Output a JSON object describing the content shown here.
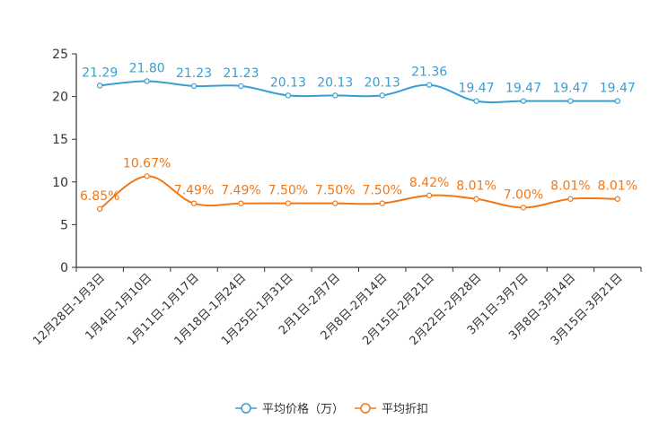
{
  "chart_data": {
    "type": "line",
    "title": "",
    "xlabel": "",
    "ylabel": "",
    "ylim": [
      0,
      25
    ],
    "yticks": [
      0,
      5,
      10,
      15,
      20,
      25
    ],
    "categories": [
      "12月28日-1月3日",
      "1月4日-1月10日",
      "1月11日-1月17日",
      "1月18日-1月24日",
      "1月25日-1月31日",
      "2月1日-2月7日",
      "2月8日-2月14日",
      "2月15日-2月21日",
      "2月22日-2月28日",
      "3月1日-3月7日",
      "3月8日-3月14日",
      "3月15日-3月21日"
    ],
    "series": [
      {
        "name": "平均价格（万）",
        "color": "#3a9fd0",
        "values": [
          21.29,
          21.8,
          21.23,
          21.23,
          20.13,
          20.13,
          20.13,
          21.36,
          19.47,
          19.47,
          19.47,
          19.47
        ],
        "labels": [
          "21.29",
          "21.80",
          "21.23",
          "21.23",
          "20.13",
          "20.13",
          "20.13",
          "21.36",
          "19.47",
          "19.47",
          "19.47",
          "19.47"
        ]
      },
      {
        "name": "平均折扣",
        "color": "#f07818",
        "values": [
          6.85,
          10.67,
          7.49,
          7.49,
          7.5,
          7.5,
          7.5,
          8.42,
          8.01,
          7.0,
          8.01,
          8.01
        ],
        "labels": [
          "6.85%",
          "10.67%",
          "7.49%",
          "7.49%",
          "7.50%",
          "7.50%",
          "7.50%",
          "8.42%",
          "8.01%",
          "7.00%",
          "8.01%",
          "8.01%"
        ]
      }
    ],
    "legend_position": "bottom-center"
  }
}
